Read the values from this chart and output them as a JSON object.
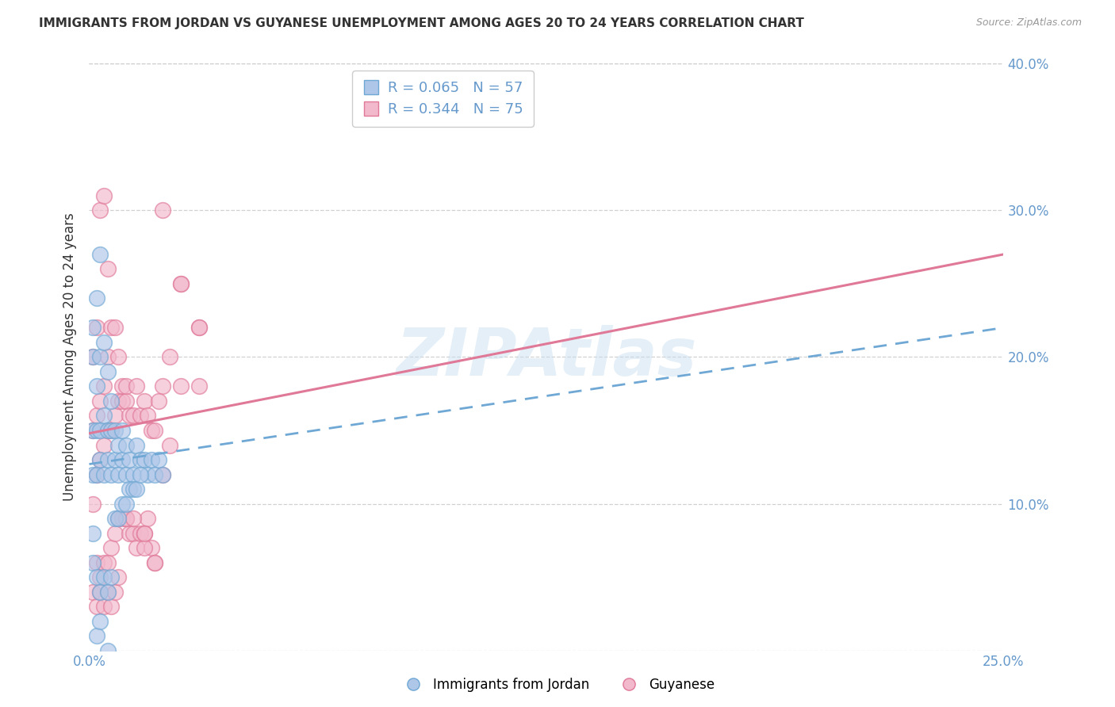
{
  "title": "IMMIGRANTS FROM JORDAN VS GUYANESE UNEMPLOYMENT AMONG AGES 20 TO 24 YEARS CORRELATION CHART",
  "source": "Source: ZipAtlas.com",
  "ylabel": "Unemployment Among Ages 20 to 24 years",
  "xlim": [
    0,
    0.25
  ],
  "ylim": [
    0,
    0.4
  ],
  "jordan_color": "#aec6e8",
  "jordan_edge_color": "#6fa8d4",
  "guyanese_color": "#f2b8cb",
  "guyanese_edge_color": "#e07898",
  "jordan_R": 0.065,
  "jordan_N": 57,
  "guyanese_R": 0.344,
  "guyanese_N": 75,
  "legend_label_jordan": "Immigrants from Jordan",
  "legend_label_guyanese": "Guyanese",
  "jordan_line_color": "#6fa8d4",
  "jordan_line_style": "--",
  "guyanese_line_color": "#e07898",
  "guyanese_line_style": "-",
  "watermark": "ZIPAtlas",
  "background_color": "#ffffff",
  "grid_color": "#cccccc",
  "title_color": "#333333",
  "axis_label_color": "#333333",
  "tick_color": "#6699cc",
  "jordan_scatter_x": [
    0.001,
    0.001,
    0.001,
    0.001,
    0.001,
    0.002,
    0.002,
    0.002,
    0.002,
    0.003,
    0.003,
    0.003,
    0.003,
    0.004,
    0.004,
    0.004,
    0.005,
    0.005,
    0.005,
    0.006,
    0.006,
    0.006,
    0.007,
    0.007,
    0.008,
    0.008,
    0.009,
    0.009,
    0.01,
    0.01,
    0.011,
    0.012,
    0.013,
    0.014,
    0.015,
    0.016,
    0.017,
    0.018,
    0.019,
    0.02,
    0.001,
    0.002,
    0.003,
    0.004,
    0.005,
    0.006,
    0.007,
    0.008,
    0.009,
    0.01,
    0.011,
    0.012,
    0.013,
    0.014,
    0.002,
    0.003,
    0.005
  ],
  "jordan_scatter_y": [
    0.08,
    0.12,
    0.15,
    0.2,
    0.22,
    0.12,
    0.15,
    0.18,
    0.24,
    0.13,
    0.15,
    0.2,
    0.27,
    0.12,
    0.16,
    0.21,
    0.13,
    0.15,
    0.19,
    0.12,
    0.15,
    0.17,
    0.13,
    0.15,
    0.12,
    0.14,
    0.13,
    0.15,
    0.12,
    0.14,
    0.13,
    0.12,
    0.14,
    0.13,
    0.13,
    0.12,
    0.13,
    0.12,
    0.13,
    0.12,
    0.06,
    0.05,
    0.04,
    0.05,
    0.04,
    0.05,
    0.09,
    0.09,
    0.1,
    0.1,
    0.11,
    0.11,
    0.11,
    0.12,
    0.01,
    0.02,
    0.0
  ],
  "guyanese_scatter_x": [
    0.001,
    0.001,
    0.001,
    0.002,
    0.002,
    0.002,
    0.003,
    0.003,
    0.003,
    0.004,
    0.004,
    0.004,
    0.005,
    0.005,
    0.005,
    0.006,
    0.006,
    0.007,
    0.007,
    0.008,
    0.008,
    0.009,
    0.009,
    0.01,
    0.01,
    0.011,
    0.012,
    0.013,
    0.014,
    0.015,
    0.016,
    0.017,
    0.018,
    0.019,
    0.02,
    0.022,
    0.025,
    0.03,
    0.001,
    0.002,
    0.003,
    0.004,
    0.005,
    0.006,
    0.007,
    0.008,
    0.009,
    0.01,
    0.011,
    0.012,
    0.013,
    0.014,
    0.015,
    0.016,
    0.017,
    0.018,
    0.02,
    0.022,
    0.025,
    0.03,
    0.002,
    0.003,
    0.004,
    0.005,
    0.006,
    0.007,
    0.008,
    0.01,
    0.012,
    0.015,
    0.018,
    0.02,
    0.025,
    0.03,
    0.015
  ],
  "guyanese_scatter_y": [
    0.1,
    0.15,
    0.2,
    0.12,
    0.16,
    0.22,
    0.13,
    0.17,
    0.3,
    0.14,
    0.18,
    0.31,
    0.15,
    0.2,
    0.26,
    0.15,
    0.22,
    0.16,
    0.22,
    0.17,
    0.2,
    0.17,
    0.18,
    0.17,
    0.18,
    0.16,
    0.16,
    0.18,
    0.16,
    0.17,
    0.16,
    0.15,
    0.15,
    0.17,
    0.18,
    0.2,
    0.25,
    0.22,
    0.04,
    0.06,
    0.05,
    0.06,
    0.06,
    0.07,
    0.08,
    0.09,
    0.09,
    0.09,
    0.08,
    0.08,
    0.07,
    0.08,
    0.08,
    0.09,
    0.07,
    0.06,
    0.12,
    0.14,
    0.25,
    0.22,
    0.03,
    0.04,
    0.03,
    0.04,
    0.03,
    0.04,
    0.05,
    0.09,
    0.09,
    0.07,
    0.06,
    0.3,
    0.18,
    0.18,
    0.08
  ],
  "jordan_trend_x": [
    0.0,
    0.25
  ],
  "jordan_trend_y": [
    0.127,
    0.22
  ],
  "guyanese_trend_x": [
    0.0,
    0.25
  ],
  "guyanese_trend_y": [
    0.148,
    0.27
  ]
}
